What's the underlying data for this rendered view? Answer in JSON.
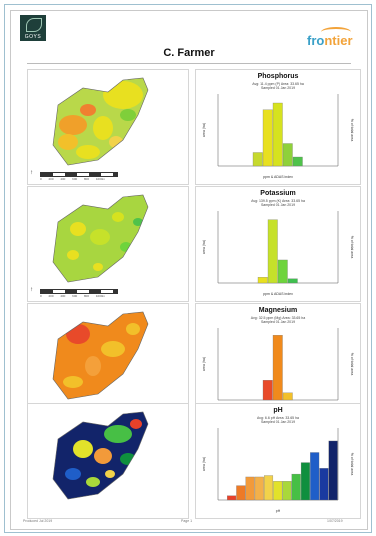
{
  "header": {
    "left_logo": "GOYS",
    "farmer": "C. Farmer",
    "right_logo_a": "fro",
    "right_logo_b": "ntier"
  },
  "panels": [
    {
      "title": "Phosphorus",
      "stats": "Avg: 11.4 ppm (P) Area: 33.65 ha",
      "sampled": "Sampled 01 Jan 2019",
      "ylabel": "area (ha)",
      "y2label": "% of total area",
      "xlabel": "ppm & ADAS index"
    },
    {
      "title": "Potassium",
      "stats": "Avg: 139.5 ppm (K) Area: 33.65 ha",
      "sampled": "Sampled 01 Jan 2019",
      "ylabel": "area (ha)",
      "y2label": "% of total area",
      "xlabel": "ppm & ADAS index"
    },
    {
      "title": "Magnesium",
      "stats": "Avg: 32.5 ppm (Mg) Area: 33.65 ha",
      "sampled": "Sampled 01 Jan 2019",
      "ylabel": "area (ha)",
      "y2label": "% of total area",
      "xlabel": "ppm & ADAS index"
    },
    {
      "title": "pH",
      "stats": "Avg: 6.6 pH Area: 33.65 ha",
      "sampled": "Sampled 01 Jan 2019",
      "ylabel": "area (ha)",
      "y2label": "% of total area",
      "xlabel": "pH"
    }
  ],
  "scale_labels": "0 200 400 600 800 1000m",
  "chart_data": [
    {
      "type": "bar",
      "ylim": [
        0,
        16
      ],
      "bars": [
        {
          "value": 3,
          "color": "#c6d92e"
        },
        {
          "value": 12.5,
          "color": "#e8e020"
        },
        {
          "value": 14,
          "color": "#d6e21f"
        },
        {
          "value": 5,
          "color": "#8fd13a"
        },
        {
          "value": 2,
          "color": "#4fc24a"
        }
      ]
    },
    {
      "type": "bar",
      "ylim": [
        0,
        25
      ],
      "bars": [
        {
          "value": 2,
          "color": "#e8e020"
        },
        {
          "value": 22,
          "color": "#c6e12a"
        },
        {
          "value": 8,
          "color": "#6ed43c"
        },
        {
          "value": 1.5,
          "color": "#3fbf4f"
        }
      ]
    },
    {
      "type": "bar",
      "ylim": [
        0,
        20
      ],
      "bars": [
        {
          "value": 5.5,
          "color": "#e84a2a"
        },
        {
          "value": 18,
          "color": "#f08a1c"
        },
        {
          "value": 2,
          "color": "#f2c02a"
        }
      ]
    },
    {
      "type": "bar",
      "ylim": [
        0,
        5
      ],
      "bars": [
        {
          "value": 0.3,
          "color": "#e8412a"
        },
        {
          "value": 1.0,
          "color": "#ee7a26"
        },
        {
          "value": 1.6,
          "color": "#f29a3a"
        },
        {
          "value": 1.6,
          "color": "#f3b04a"
        },
        {
          "value": 1.7,
          "color": "#f2d24a"
        },
        {
          "value": 1.3,
          "color": "#e2e22a"
        },
        {
          "value": 1.3,
          "color": "#a9d83a"
        },
        {
          "value": 1.8,
          "color": "#47bf45"
        },
        {
          "value": 2.6,
          "color": "#0f8f3e"
        },
        {
          "value": 3.3,
          "color": "#1f5ec8"
        },
        {
          "value": 2.2,
          "color": "#1a3aa0"
        },
        {
          "value": 4.1,
          "color": "#12246a"
        }
      ]
    }
  ],
  "footer": {
    "left": "Produced Jul 2019",
    "center": "Page 1",
    "right": "1/07/2019"
  }
}
